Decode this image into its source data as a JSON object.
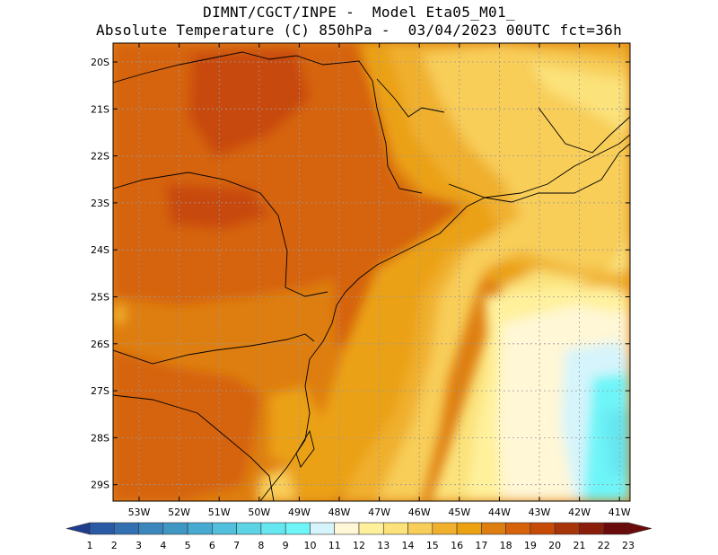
{
  "header": {
    "title_line1": "DIMNT/CGCT/INPE -  Model Eta05_M01_",
    "title_line2": "Absolute Temperature (C) 850hPa -  03/04/2023 00UTC fct=36h"
  },
  "map": {
    "lat_labels": [
      "20S",
      "21S",
      "22S",
      "23S",
      "24S",
      "25S",
      "26S",
      "27S",
      "28S",
      "29S"
    ],
    "lon_labels": [
      "53W",
      "52W",
      "51W",
      "50W",
      "49W",
      "48W",
      "47W",
      "46W",
      "45W",
      "44W",
      "43W",
      "42W",
      "41W"
    ]
  },
  "colorbar": {
    "labels": [
      "1",
      "2",
      "3",
      "4",
      "5",
      "6",
      "7",
      "8",
      "9",
      "10",
      "11",
      "12",
      "13",
      "14",
      "15",
      "16",
      "17",
      "18",
      "19",
      "20",
      "21",
      "22",
      "23"
    ],
    "colors": [
      "#1f3d8f",
      "#2a5aa5",
      "#3270b2",
      "#3a86bd",
      "#3f97c4",
      "#48aad0",
      "#52bfdc",
      "#5dd3e6",
      "#66e6f0",
      "#6ef5f8",
      "#d5f4fb",
      "#fff7d6",
      "#fff19c",
      "#fbe27a",
      "#f8cd59",
      "#f0b02e",
      "#eba112",
      "#de7e10",
      "#d6630c",
      "#c84a07",
      "#a8340a",
      "#8a1d0a",
      "#6b0a0a"
    ]
  }
}
